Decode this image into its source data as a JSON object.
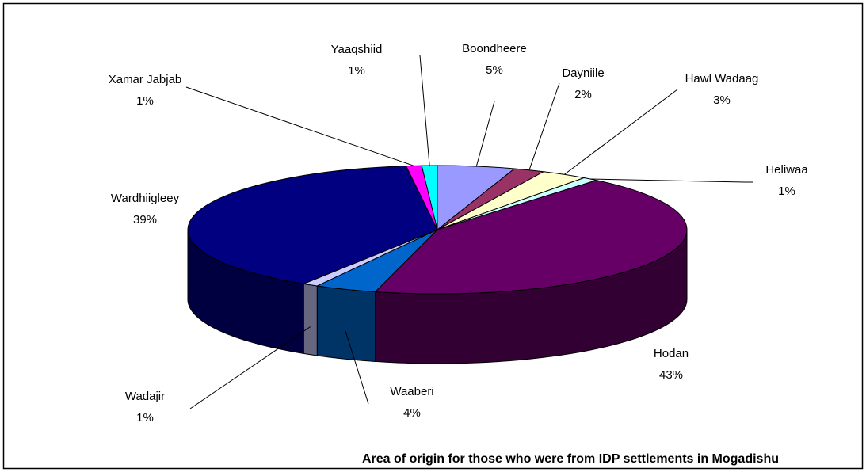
{
  "chart_data": {
    "type": "pie3d",
    "title": "Area of origin for those who were from IDP settlements in Mogadishu",
    "categories": [
      "Boondheere",
      "Dayniile",
      "Hawl Wadaag",
      "Heliwaa",
      "Hodan",
      "Waaberi",
      "Wadajir",
      "Wardhiigleey",
      "Xamar Jabjab",
      "Yaaqshiid"
    ],
    "values": [
      5,
      2,
      3,
      1,
      43,
      4,
      1,
      39,
      1,
      1
    ],
    "value_labels": [
      "5%",
      "2%",
      "3%",
      "1%",
      "43%",
      "4%",
      "1%",
      "39%",
      "1%",
      "1%"
    ],
    "colors": [
      "#9999ff",
      "#993366",
      "#ffffcc",
      "#ccffff",
      "#660066",
      "#0066cc",
      "#ccccff",
      "#000080",
      "#ff00ff",
      "#00ffff"
    ]
  }
}
